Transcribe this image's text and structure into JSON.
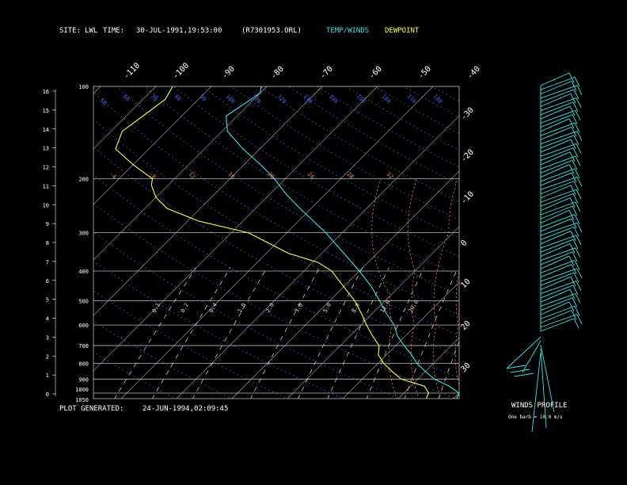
{
  "header": {
    "site_label": "SITE:",
    "site_value": "LWL",
    "time_label": "TIME:",
    "time_value": "30-JUL-1991,19:53:00",
    "file_name": "(R7301953.ORL)",
    "legend_temp": "TEMP/WINDS",
    "legend_dew": "DEWPOINT"
  },
  "footer": {
    "generated_label": "PLOT GENERATED:",
    "generated_value": "24-JUN-1994,02:09:45"
  },
  "winds_panel": {
    "title": "WINDS PROFILE",
    "note": "One barb = 10.0 m/s"
  },
  "colors": {
    "temp": "#33e6e6",
    "dew": "#ffff33",
    "isobar": "#bbbbbb",
    "isotherm": "#bbbbbb",
    "dry_adiabat": "#4466ff",
    "moist_adiabat": "#ff8844",
    "mixing_ratio": "#dddddd",
    "wind": "#33e6e6"
  },
  "chart_data": {
    "type": "line",
    "pressure_labels": [
      "100",
      "200",
      "300",
      "400",
      "500",
      "600",
      "700",
      "800",
      "900",
      "1000",
      "1050"
    ],
    "pressure_levels": [
      100,
      200,
      300,
      400,
      500,
      600,
      700,
      800,
      900,
      1000,
      1050
    ],
    "height_labels": [
      "16",
      "15",
      "14",
      "13",
      "12",
      "11",
      "10",
      "9",
      "8",
      "7",
      "6",
      "5",
      "4",
      "3",
      "2",
      "1",
      "0"
    ],
    "isotherm_labels_top": [
      "-110",
      "-100",
      "-90",
      "-80",
      "-70",
      "-60",
      "-50",
      "-40"
    ],
    "isotherm_labels_right": [
      "-30",
      "-20",
      "-10",
      "0",
      "10",
      "20",
      "30"
    ],
    "dry_adiabat_labels": [
      "50",
      "60",
      "70",
      "80",
      "90",
      "100",
      "110",
      "120",
      "130",
      "140",
      "150",
      "160",
      "170",
      "180"
    ],
    "mixing_ratio_labels": [
      "0.1",
      "0.2",
      "0.4",
      "1.0",
      "2.0",
      "3.0",
      "5.0",
      "8.0",
      "12.0",
      "20.0"
    ],
    "moist_adiabat_labels": [
      "-4",
      "-8",
      "12",
      "16",
      "20",
      "24",
      "28",
      "32"
    ],
    "series": [
      {
        "name": "TEMP/WINDS",
        "points": [
          [
            1040,
            20.5
          ],
          [
            1000,
            20.0
          ],
          [
            950,
            17.0
          ],
          [
            900,
            13.0
          ],
          [
            850,
            10.0
          ],
          [
            800,
            7.0
          ],
          [
            750,
            4.5
          ],
          [
            700,
            1.5
          ],
          [
            650,
            -1.5
          ],
          [
            600,
            -4.0
          ],
          [
            550,
            -7.5
          ],
          [
            500,
            -11.0
          ],
          [
            450,
            -15.0
          ],
          [
            400,
            -20.0
          ],
          [
            350,
            -26.0
          ],
          [
            300,
            -33.0
          ],
          [
            250,
            -42.0
          ],
          [
            225,
            -47.0
          ],
          [
            200,
            -52.0
          ],
          [
            180,
            -57.0
          ],
          [
            160,
            -63.0
          ],
          [
            140,
            -69.0
          ],
          [
            125,
            -72.0
          ],
          [
            115,
            -71.0
          ],
          [
            105,
            -70.0
          ],
          [
            100,
            -71.0
          ]
        ]
      },
      {
        "name": "DEWPOINT",
        "points": [
          [
            1040,
            15.0
          ],
          [
            1000,
            14.5
          ],
          [
            950,
            12.5
          ],
          [
            900,
            7.0
          ],
          [
            850,
            4.0
          ],
          [
            800,
            1.0
          ],
          [
            750,
            -1.5
          ],
          [
            700,
            -3.0
          ],
          [
            650,
            -6.0
          ],
          [
            600,
            -9.0
          ],
          [
            550,
            -12.0
          ],
          [
            500,
            -15.5
          ],
          [
            450,
            -20.0
          ],
          [
            400,
            -25.0
          ],
          [
            375,
            -29.0
          ],
          [
            350,
            -36.0
          ],
          [
            300,
            -47.0
          ],
          [
            275,
            -58.0
          ],
          [
            250,
            -66.0
          ],
          [
            230,
            -70.0
          ],
          [
            210,
            -73.0
          ],
          [
            200,
            -74.0
          ],
          [
            180,
            -80.0
          ],
          [
            160,
            -86.0
          ],
          [
            140,
            -88.0
          ],
          [
            125,
            -87.0
          ],
          [
            110,
            -86.0
          ],
          [
            100,
            -87.0
          ]
        ]
      }
    ],
    "wind_barbs_count": 60
  }
}
